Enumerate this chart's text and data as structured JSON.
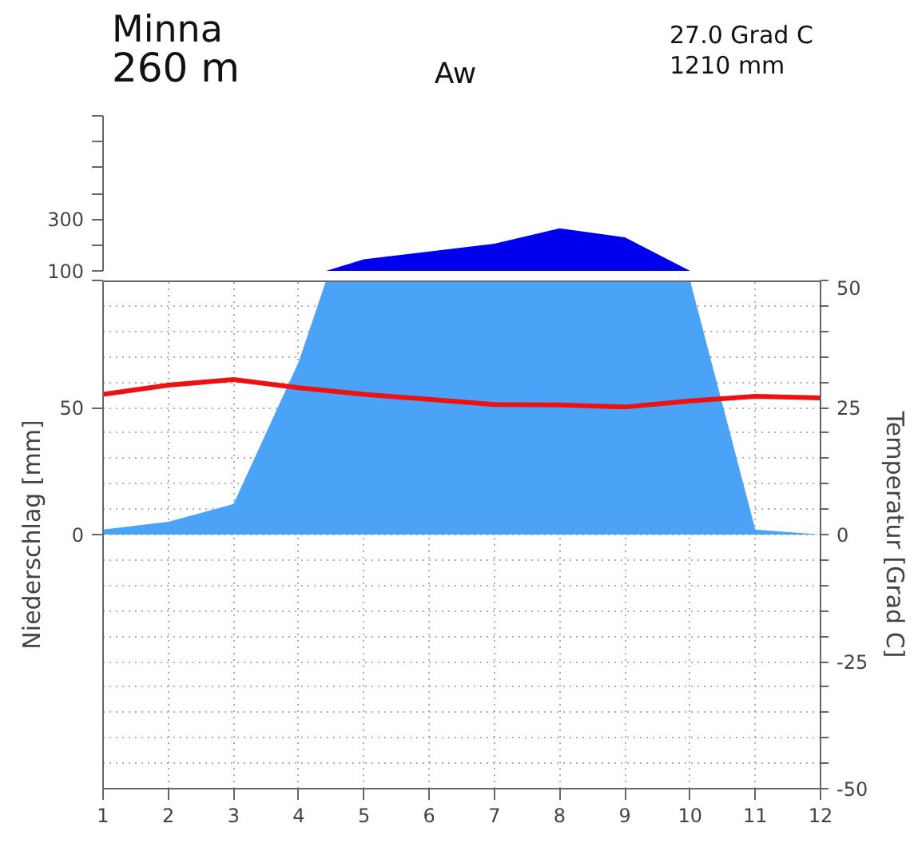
{
  "chart_data": [
    {
      "type": "area",
      "title": "Minna",
      "subtitle": "260 m",
      "annotations": [
        "Aw",
        "27.0 Grad C",
        "1210 mm"
      ],
      "x": [
        4.42,
        5,
        6,
        7,
        8,
        9,
        10
      ],
      "xlim": [
        1,
        12
      ],
      "tick_labels": "y",
      "ylim": [
        100,
        700
      ],
      "yticks": [
        100,
        {
          "value": 200,
          "label": null
        },
        300,
        {
          "value": 400,
          "label": null
        },
        {
          "value": 500,
          "label": null
        },
        {
          "value": 600,
          "label": null
        },
        {
          "value": 700,
          "label": null
        }
      ],
      "series": [
        {
          "color": "#0000ee",
          "values": [
            100,
            145,
            175,
            205,
            265,
            230,
            100
          ]
        }
      ]
    },
    {
      "type": "area",
      "ylabel": "Niederschlag [mm]",
      "y2label": "Temperatur [Grad C]",
      "x": [
        1,
        2,
        3,
        4,
        5,
        6,
        7,
        8,
        9,
        10,
        11,
        12
      ],
      "xlim": [
        1,
        12
      ],
      "xticks": [
        1,
        2,
        3,
        4,
        5,
        6,
        7,
        8,
        9,
        10,
        11,
        12
      ],
      "ylim": [
        -100,
        100
      ],
      "yticks": [
        0,
        50,
        {
          "value": 100,
          "label": null
        }
      ],
      "y2lim": [
        -50,
        50
      ],
      "y2ticks": [
        -50,
        {
          "value": -45,
          "label": null
        },
        {
          "value": -40,
          "label": null
        },
        {
          "value": -35,
          "label": null
        },
        {
          "value": -30,
          "label": null
        },
        -25,
        {
          "value": -20,
          "label": null
        },
        {
          "value": -15,
          "label": null
        },
        {
          "value": -10,
          "label": null
        },
        {
          "value": -5,
          "label": null
        },
        0,
        {
          "value": 5,
          "label": null
        },
        {
          "value": 10,
          "label": null
        },
        {
          "value": 15,
          "label": null
        },
        {
          "value": 20,
          "label": null
        },
        25,
        {
          "value": 30,
          "label": null
        },
        {
          "value": 35,
          "label": null
        },
        {
          "value": 40,
          "label": null
        },
        {
          "value": 45,
          "label": null
        },
        50
      ],
      "grid": true,
      "series": [
        {
          "x": [
            1,
            2,
            3,
            4,
            4.42,
            10,
            11,
            12
          ],
          "color": "#4aa3f7",
          "values": [
            2,
            5,
            12,
            68,
            100,
            100,
            2,
            0
          ]
        },
        {
          "type": "line",
          "axis": "y2",
          "color": "#ee1111",
          "values": [
            27.6,
            29.4,
            30.5,
            28.9,
            27.6,
            26.6,
            25.6,
            25.5,
            25.1,
            26.3,
            27.2,
            26.9
          ]
        }
      ]
    }
  ]
}
